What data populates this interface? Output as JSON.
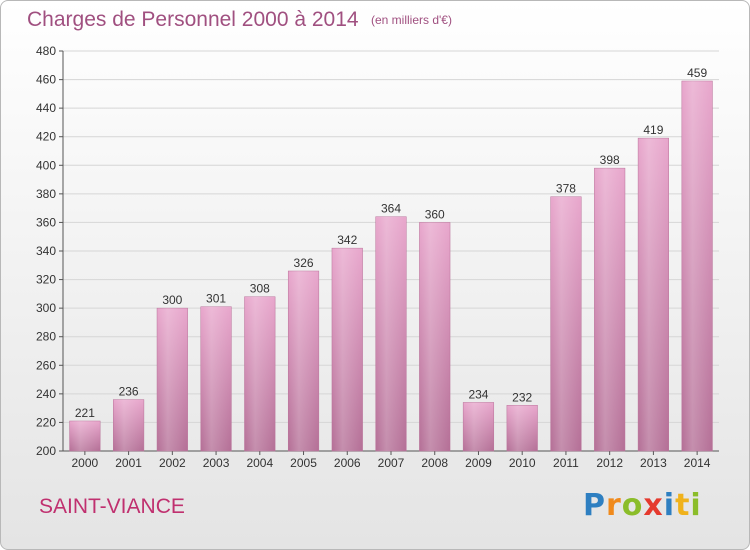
{
  "chart_data": {
    "type": "bar",
    "title": "Charges de Personnel 2000 à 2014",
    "subtitle": "(en milliers d'€)",
    "categories": [
      "2000",
      "2001",
      "2002",
      "2003",
      "2004",
      "2005",
      "2006",
      "2007",
      "2008",
      "2009",
      "2010",
      "2011",
      "2012",
      "2013",
      "2014"
    ],
    "values": [
      221,
      236,
      300,
      301,
      308,
      326,
      342,
      364,
      360,
      234,
      232,
      378,
      398,
      419,
      459
    ],
    "ylim": [
      200,
      480
    ],
    "yticks": [
      200,
      220,
      240,
      260,
      280,
      300,
      320,
      340,
      360,
      380,
      400,
      420,
      440,
      460,
      480
    ],
    "grid": true,
    "legend": "none",
    "bar_color": "#d88ab4"
  },
  "commune": "SAINT-VIANCE",
  "logo": {
    "text": "Proxiti",
    "letters": [
      {
        "ch": "P",
        "color": "#2e7fc1"
      },
      {
        "ch": "r",
        "color": "#f08a1c"
      },
      {
        "ch": "o",
        "color": "#8bbd2a"
      },
      {
        "ch": "x",
        "color": "#e53a2e"
      },
      {
        "ch": "i",
        "color": "#2e7fc1"
      },
      {
        "ch": "t",
        "color": "#f0b21c"
      },
      {
        "ch": "i",
        "color": "#8bbd2a"
      }
    ]
  }
}
